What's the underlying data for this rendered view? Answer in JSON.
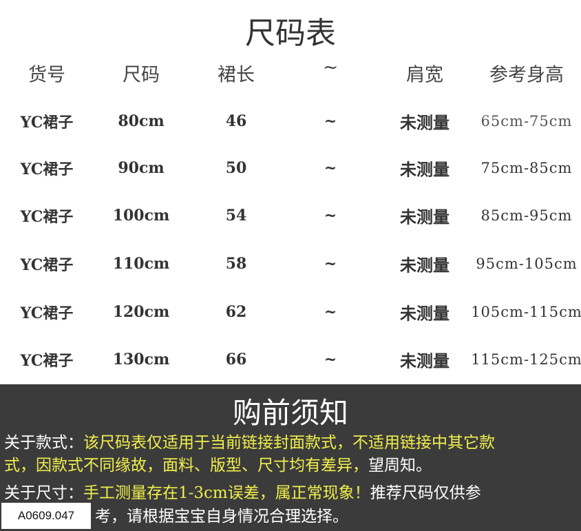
{
  "title": "尺码表",
  "headers": [
    "货号",
    "尺码",
    "裙长",
    "~",
    "肩宽",
    "参考身高"
  ],
  "rows": [
    [
      "YC裙子",
      "80cm",
      "46",
      "~",
      "未测量",
      "65cm-75cm"
    ],
    [
      "YC裙子",
      "90cm",
      "50",
      "~",
      "未测量",
      "75cm-85cm"
    ],
    [
      "YC裙子",
      "100cm",
      "54",
      "~",
      "未测量",
      "85cm-95cm"
    ],
    [
      "YC裙子",
      "110cm",
      "58",
      "~",
      "未测量",
      "95cm-105cm"
    ],
    [
      "YC裙子",
      "120cm",
      "62",
      "~",
      "未测量",
      "105cm-115cm"
    ],
    [
      "YC裙子",
      "130cm",
      "66",
      "~",
      "未测量",
      "115cm-125cm"
    ]
  ],
  "notice": {
    "title": "购前须知",
    "style_label": "关于款式：",
    "style_text_line1": "该尺码表仅适用于当前链接封面款式，不适用链接中其它款",
    "style_text_line2": "式，因款式不同缘故，面料、版型、尺寸均有差异，",
    "style_text_line2_end": "望周知。",
    "size_label": "关于尺寸：",
    "size_text_yellow": "手工测量存在1-3cm误差，属正常现象！",
    "size_text_white": "推荐尺码仅供参",
    "size_text_line2": "考，请根据宝宝自身情况合理选择。"
  },
  "code_tag": "A0609.047",
  "colors": {
    "band": "#3b3b3c",
    "highlight": "#f2f04a"
  }
}
